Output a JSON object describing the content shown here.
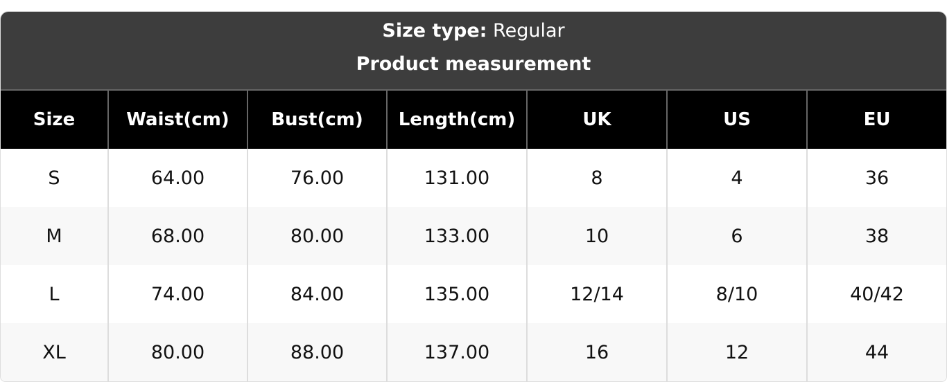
{
  "header": {
    "size_type_label": "Size type:",
    "size_type_value": "Regular",
    "subtitle": "Product measurement"
  },
  "table": {
    "columns": [
      "Size",
      "Waist(cm)",
      "Bust(cm)",
      "Length(cm)",
      "UK",
      "US",
      "EU"
    ],
    "rows": [
      [
        "S",
        "64.00",
        "76.00",
        "131.00",
        "8",
        "4",
        "36"
      ],
      [
        "M",
        "68.00",
        "80.00",
        "133.00",
        "10",
        "6",
        "38"
      ],
      [
        "L",
        "74.00",
        "84.00",
        "135.00",
        "12/14",
        "8/10",
        "40/42"
      ],
      [
        "XL",
        "80.00",
        "88.00",
        "137.00",
        "16",
        "12",
        "44"
      ]
    ]
  },
  "colors": {
    "header_bg": "#3d3d3d",
    "column_header_bg": "#000000",
    "alt_row_bg": "#f8f8f8"
  }
}
